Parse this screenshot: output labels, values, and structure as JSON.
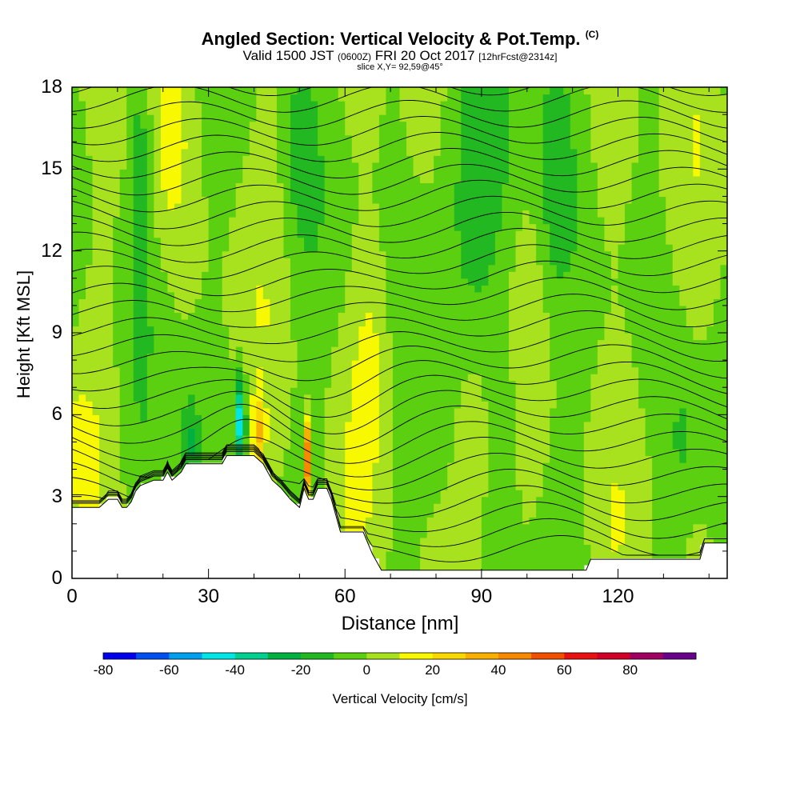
{
  "title": "Angled Section: Vertical Velocity & Pot.Temp.",
  "title_suffix": "(C)",
  "subtitle_a": "Valid 1500 JST",
  "subtitle_b": "(0600Z)",
  "subtitle_c": "FRI 20 Oct 2017",
  "subtitle_d": "[12hrFcst@2314z]",
  "slice": "slice X,Y= 92,59@45°",
  "chart_data": {
    "type": "heatmap",
    "title": "Angled Section: Vertical Velocity & Pot.Temp.",
    "xlabel": "Distance [nm]",
    "ylabel": "Height [Kft MSL]",
    "xlim": [
      0,
      144
    ],
    "ylim": [
      0,
      18
    ],
    "x_ticks": [
      "0",
      "30",
      "60",
      "90",
      "120"
    ],
    "x_tick_values": [
      0,
      30,
      60,
      90,
      120
    ],
    "y_ticks": [
      "0",
      "3",
      "6",
      "9",
      "12",
      "15",
      "18"
    ],
    "y_tick_values": [
      0,
      3,
      6,
      9,
      12,
      15,
      18
    ],
    "colorbar": {
      "label": "Vertical Velocity [cm/s]",
      "tick_labels": [
        "-80",
        "-60",
        "-40",
        "-20",
        "0",
        "20",
        "40",
        "60",
        "80"
      ],
      "tick_values": [
        -80,
        -60,
        -40,
        -20,
        0,
        20,
        40,
        60,
        80
      ],
      "bins": [
        -80,
        -70,
        -60,
        -50,
        -40,
        -30,
        -20,
        -10,
        0,
        10,
        20,
        30,
        40,
        50,
        60,
        70,
        80,
        90
      ],
      "colors": [
        "#0000ee",
        "#0050f0",
        "#00a0ee",
        "#00e6e6",
        "#00d090",
        "#00b040",
        "#22b822",
        "#5ad010",
        "#a8e21e",
        "#f8f800",
        "#f8d800",
        "#f8b000",
        "#f88800",
        "#f05000",
        "#e81010",
        "#d00028",
        "#a00060",
        "#6a008a"
      ]
    },
    "terrain_height_kft": [
      [
        0,
        2.6
      ],
      [
        6,
        2.6
      ],
      [
        8,
        2.9
      ],
      [
        10,
        2.9
      ],
      [
        11,
        2.6
      ],
      [
        12,
        2.6
      ],
      [
        13,
        2.8
      ],
      [
        14,
        3.2
      ],
      [
        15,
        3.4
      ],
      [
        18,
        3.6
      ],
      [
        20,
        3.6
      ],
      [
        21,
        3.9
      ],
      [
        22,
        3.6
      ],
      [
        24,
        3.9
      ],
      [
        25,
        4.2
      ],
      [
        33,
        4.2
      ],
      [
        34,
        4.5
      ],
      [
        40,
        4.5
      ],
      [
        42,
        4.2
      ],
      [
        44,
        3.6
      ],
      [
        46,
        3.3
      ],
      [
        48,
        2.9
      ],
      [
        50,
        2.6
      ],
      [
        51,
        3.3
      ],
      [
        52,
        2.9
      ],
      [
        53,
        2.9
      ],
      [
        54,
        3.3
      ],
      [
        56,
        3.3
      ],
      [
        57,
        2.9
      ],
      [
        58,
        2.3
      ],
      [
        59,
        1.7
      ],
      [
        64,
        1.7
      ],
      [
        65,
        1.3
      ],
      [
        66,
        0.9
      ],
      [
        67,
        0.6
      ],
      [
        68,
        0.3
      ],
      [
        113,
        0.3
      ],
      [
        114,
        0.7
      ],
      [
        138,
        0.7
      ],
      [
        139,
        1.3
      ],
      [
        144,
        1.3
      ]
    ],
    "isentrope_levels": 30
  }
}
